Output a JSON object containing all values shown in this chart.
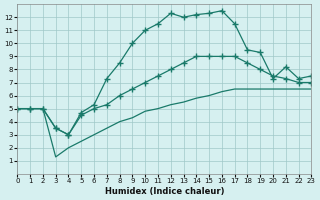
{
  "xlabel": "Humidex (Indice chaleur)",
  "background_color": "#d6f0f0",
  "grid_color": "#a0c8c8",
  "line_color": "#1a7a6a",
  "xlim": [
    0,
    23
  ],
  "ylim": [
    0,
    13
  ],
  "xticks": [
    0,
    1,
    2,
    3,
    4,
    5,
    6,
    7,
    8,
    9,
    10,
    11,
    12,
    13,
    14,
    15,
    16,
    17,
    18,
    19,
    20,
    21,
    22,
    23
  ],
  "yticks": [
    1,
    2,
    3,
    4,
    5,
    6,
    7,
    8,
    9,
    10,
    11,
    12
  ],
  "line1_x": [
    0,
    1,
    2,
    3,
    4,
    5,
    6,
    7,
    8,
    9,
    10,
    11,
    12,
    13,
    14,
    15,
    16,
    17,
    18,
    19,
    20,
    21,
    22,
    23
  ],
  "line1_y": [
    5.0,
    5.0,
    5.0,
    3.5,
    3.0,
    4.7,
    5.3,
    7.3,
    8.5,
    10.0,
    11.0,
    11.5,
    12.3,
    12.0,
    12.2,
    12.3,
    12.5,
    11.5,
    9.5,
    9.3,
    7.3,
    8.2,
    7.3,
    7.5
  ],
  "line2_x": [
    0,
    1,
    2,
    3,
    4,
    5,
    6,
    7,
    8,
    9,
    10,
    11,
    12,
    13,
    14,
    15,
    16,
    17,
    18,
    19,
    20,
    21,
    22,
    23
  ],
  "line2_y": [
    5.0,
    5.0,
    5.0,
    3.5,
    3.0,
    4.5,
    5.0,
    5.3,
    6.0,
    6.5,
    7.0,
    7.5,
    8.0,
    8.5,
    9.0,
    9.0,
    9.0,
    9.0,
    8.5,
    8.0,
    7.5,
    7.3,
    7.0,
    7.0
  ],
  "line3_x": [
    0,
    1,
    2,
    3,
    4,
    5,
    6,
    7,
    8,
    9,
    10,
    11,
    12,
    13,
    14,
    15,
    16,
    17,
    18,
    19,
    20,
    21,
    22,
    23
  ],
  "line3_y": [
    5.0,
    5.0,
    5.0,
    1.3,
    2.0,
    2.5,
    3.0,
    3.5,
    4.0,
    4.3,
    4.8,
    5.0,
    5.3,
    5.5,
    5.8,
    6.0,
    6.3,
    6.5,
    6.5,
    6.5,
    6.5,
    6.5,
    6.5,
    6.5
  ]
}
